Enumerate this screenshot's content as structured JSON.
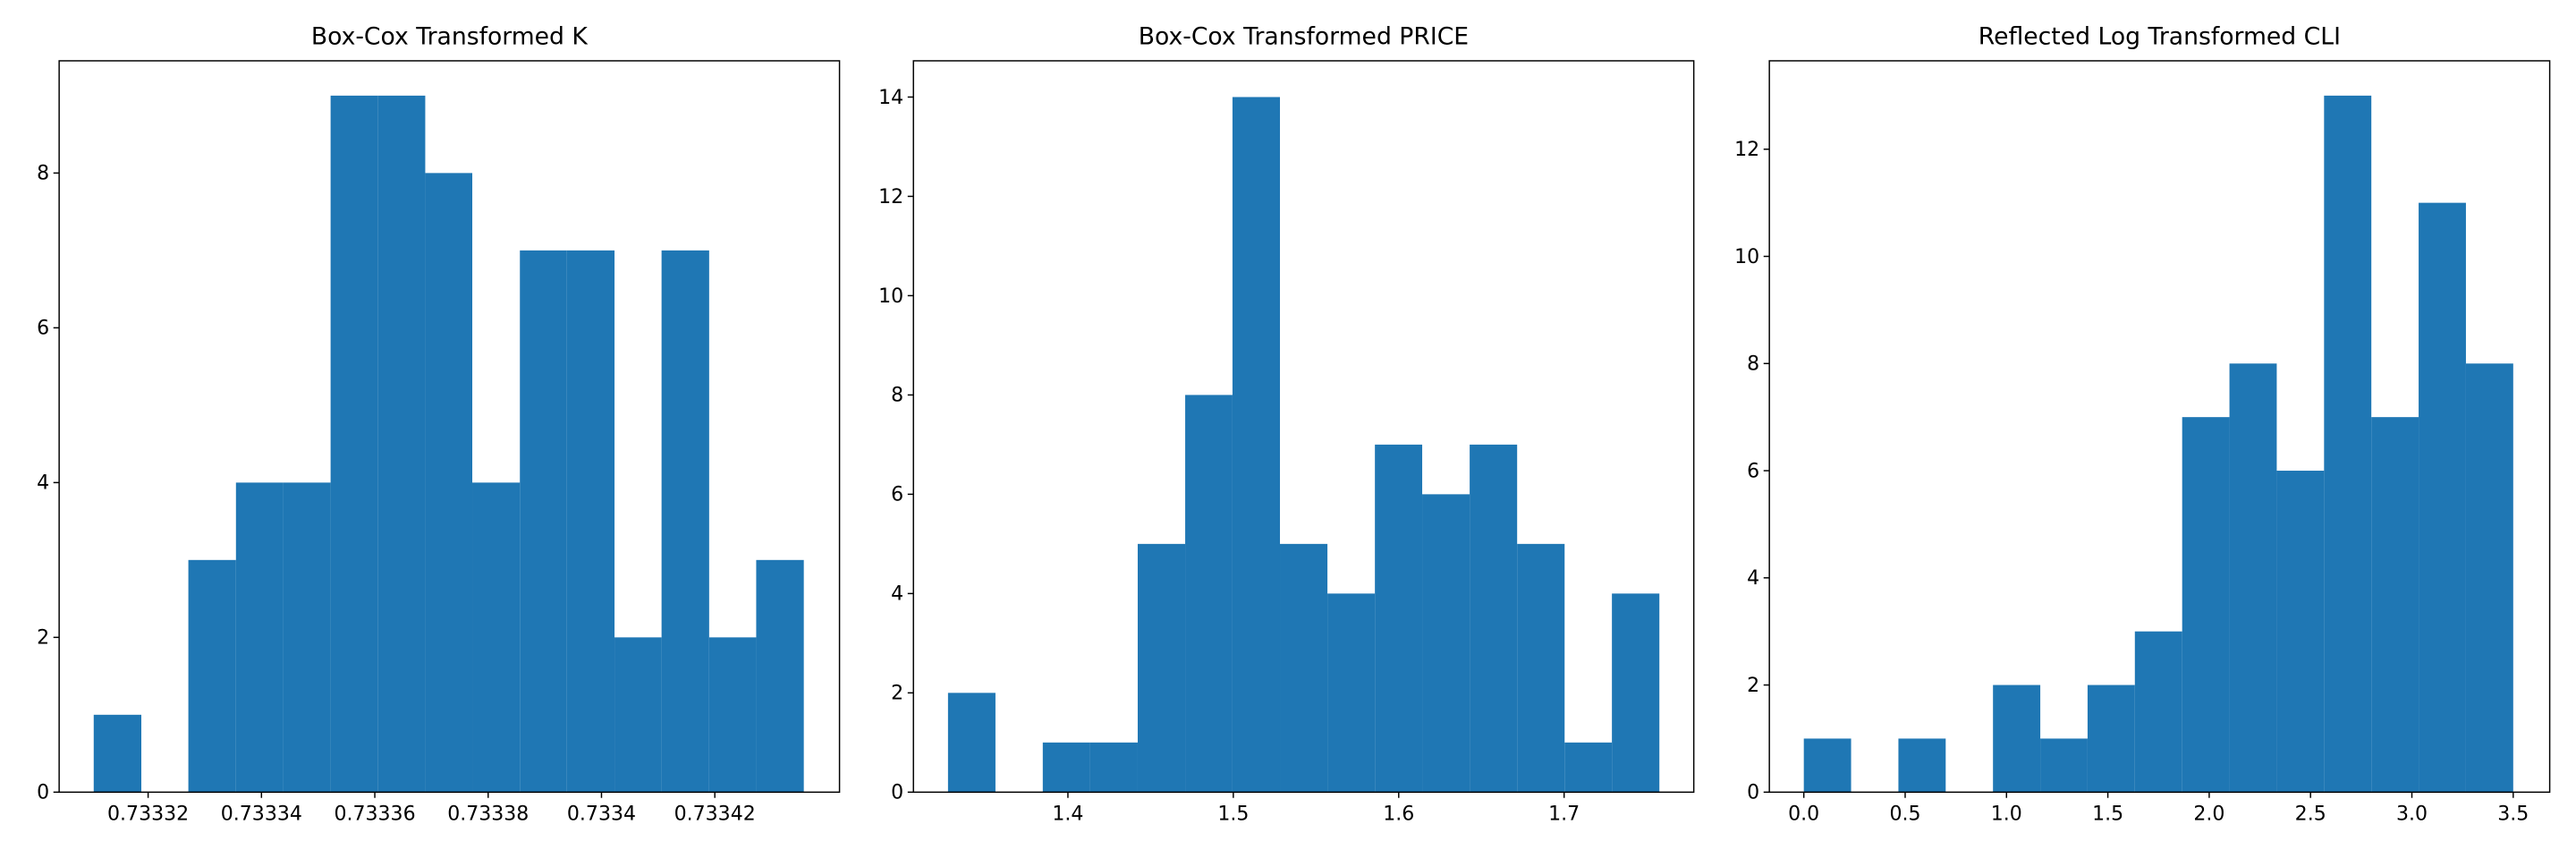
{
  "chart_data": [
    {
      "type": "histogram",
      "title": "Box-Cox Transformed K",
      "color": "#1f77b4",
      "bins": [
        0.7333104,
        0.7333188,
        0.7333271,
        0.7333355,
        0.7333438,
        0.7333522,
        0.7333605,
        0.7333689,
        0.7333772,
        0.7333856,
        0.7333939,
        0.7334023,
        0.7334106,
        0.733419,
        0.7334273,
        0.7334357
      ],
      "values": [
        1,
        0,
        3,
        4,
        4,
        9,
        9,
        8,
        4,
        7,
        7,
        2,
        7,
        2,
        3
      ],
      "xlim": [
        0.7333043,
        0.733442
      ],
      "ylim": [
        0,
        9.45
      ],
      "xticks": [
        0.73332,
        0.73334,
        0.73336,
        0.73338,
        0.7334,
        0.73342
      ],
      "yticks": [
        0,
        2,
        4,
        6,
        8
      ]
    },
    {
      "type": "histogram",
      "title": "Box-Cox Transformed PRICE",
      "color": "#1f77b4",
      "bins": [
        1.3275,
        1.3562,
        1.3848,
        1.4135,
        1.4422,
        1.4709,
        1.4995,
        1.5282,
        1.5569,
        1.5856,
        1.6142,
        1.6429,
        1.6716,
        1.7003,
        1.7289,
        1.7576
      ],
      "values": [
        2,
        0,
        1,
        1,
        5,
        8,
        14,
        5,
        4,
        7,
        6,
        7,
        5,
        1,
        4
      ],
      "xlim": [
        1.3066,
        1.7784
      ],
      "ylim": [
        0,
        14.73
      ],
      "xticks": [
        1.4,
        1.5,
        1.6,
        1.7
      ],
      "yticks": [
        0,
        2,
        4,
        6,
        8,
        10,
        12,
        14
      ]
    },
    {
      "type": "histogram",
      "title": "Reflected Log Transformed CLI",
      "color": "#1f77b4",
      "bins": [
        0,
        0.2333,
        0.4667,
        0.7,
        0.9333,
        1.1667,
        1.4,
        1.6333,
        1.8667,
        2.1,
        2.3333,
        2.5667,
        2.8,
        3.0333,
        3.2667,
        3.5
      ],
      "values": [
        1,
        0,
        1,
        0,
        2,
        1,
        2,
        3,
        7,
        8,
        6,
        13,
        7,
        11,
        8
      ],
      "xlim": [
        -0.17,
        3.68
      ],
      "ylim": [
        0,
        13.65
      ],
      "xticks": [
        {
          "value": 0,
          "label": "0.0"
        },
        {
          "value": 0.5,
          "label": "0.5"
        },
        {
          "value": 1,
          "label": "1.0"
        },
        {
          "value": 1.5,
          "label": "1.5"
        },
        {
          "value": 2,
          "label": "2.0"
        },
        {
          "value": 2.5,
          "label": "2.5"
        },
        {
          "value": 3,
          "label": "3.0"
        },
        {
          "value": 3.5,
          "label": "3.5"
        }
      ],
      "yticks": [
        0,
        2,
        4,
        6,
        8,
        10,
        12
      ]
    }
  ]
}
